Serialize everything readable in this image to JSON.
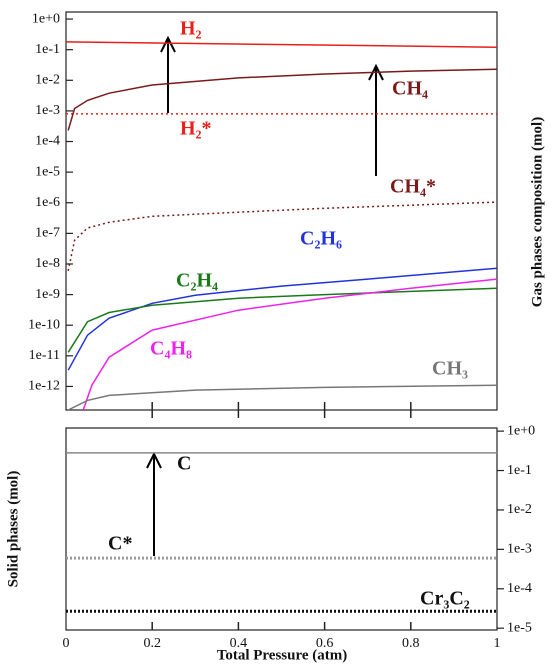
{
  "chart_data": [
    {
      "type": "line",
      "ylabel": "Gas phases composition (mol)",
      "ylog": true,
      "xlim": [
        0,
        1
      ],
      "ylim": [
        1.7e-13,
        1.7
      ],
      "yticks": [
        {
          "value": 1,
          "label": "1e+0"
        },
        {
          "value": 0.1,
          "label": "1e-1"
        },
        {
          "value": 0.01,
          "label": "1e-2"
        },
        {
          "value": 0.001,
          "label": "1e-3"
        },
        {
          "value": 0.0001,
          "label": "1e-4"
        },
        {
          "value": 1e-05,
          "label": "1e-5"
        },
        {
          "value": 1e-06,
          "label": "1e-6"
        },
        {
          "value": 1e-07,
          "label": "1e-7"
        },
        {
          "value": 1e-08,
          "label": "1e-8"
        },
        {
          "value": 1e-09,
          "label": "1e-9"
        },
        {
          "value": 1e-10,
          "label": "1e-10"
        },
        {
          "value": 1e-11,
          "label": "1e-11"
        },
        {
          "value": 1e-12,
          "label": "1e-12"
        }
      ],
      "series": [
        {
          "name": "H₂",
          "color": "#e8201a",
          "x": [
            0,
            1
          ],
          "values": [
            0.18,
            0.12
          ]
        },
        {
          "name": "H₂*",
          "color": "#e8201a",
          "dash": "dotted",
          "x": [
            0,
            1
          ],
          "values": [
            0.0008,
            0.0008
          ]
        },
        {
          "name": "CH₄",
          "color": "#7a1a1a",
          "x": [
            0.005,
            0.02,
            0.05,
            0.1,
            0.2,
            0.4,
            0.6,
            0.8,
            1
          ],
          "values": [
            0.00023,
            0.0012,
            0.0022,
            0.0038,
            0.007,
            0.012,
            0.016,
            0.02,
            0.023
          ]
        },
        {
          "name": "CH₄*",
          "color": "#7a1a1a",
          "dash": "dotted",
          "x": [
            0.005,
            0.02,
            0.05,
            0.1,
            0.2,
            0.4,
            0.6,
            0.8,
            1
          ],
          "values": [
            6e-09,
            6e-08,
            1.5e-07,
            2.3e-07,
            3.6e-07,
            4.9e-07,
            6.6e-07,
            8.3e-07,
            1.05e-06
          ]
        },
        {
          "name": "C₂H₆",
          "color": "#2233dd",
          "x": [
            0.005,
            0.05,
            0.1,
            0.2,
            0.3,
            0.5,
            0.7,
            1
          ],
          "values": [
            3.4e-12,
            4.7e-11,
            1.7e-10,
            5.2e-10,
            9.5e-10,
            1.9e-09,
            3.2e-09,
            7.3e-09
          ]
        },
        {
          "name": "C₂H₄",
          "color": "#1a7a1a",
          "x": [
            0.005,
            0.05,
            0.1,
            0.2,
            0.4,
            0.6,
            1
          ],
          "values": [
            1.3e-11,
            1.3e-10,
            2.6e-10,
            4.5e-10,
            7.6e-10,
            1e-09,
            1.6e-09
          ]
        },
        {
          "name": "C₄H₈",
          "color": "#ee22ee",
          "x": [
            0.04,
            0.06,
            0.1,
            0.2,
            0.4,
            0.6,
            0.8,
            1
          ],
          "values": [
            1.7e-13,
            1.1e-12,
            9e-12,
            6.9e-11,
            3.1e-10,
            7.6e-10,
            1.6e-09,
            3.2e-09
          ]
        },
        {
          "name": "CH₃",
          "color": "#777777",
          "x": [
            0.005,
            0.05,
            0.1,
            0.3,
            0.6,
            1
          ],
          "values": [
            1.7e-13,
            3.5e-13,
            5.1e-13,
            7.6e-13,
            9.3e-13,
            1.1e-12
          ]
        }
      ]
    },
    {
      "type": "line",
      "xlabel": "Total Pressure (atm)",
      "ylabel": "Solid phases (mol)",
      "ylog": true,
      "yaxis_side": "right",
      "xlim": [
        0,
        1
      ],
      "ylim": [
        9e-06,
        1.2
      ],
      "xticks": [
        0,
        0.2,
        0.4,
        0.6,
        0.8,
        1
      ],
      "yticks": [
        {
          "value": 1,
          "label": "1e+0"
        },
        {
          "value": 0.1,
          "label": "1e-1"
        },
        {
          "value": 0.01,
          "label": "1e-2"
        },
        {
          "value": 0.001,
          "label": "1e-3"
        },
        {
          "value": 0.0001,
          "label": "1e-4"
        },
        {
          "value": 1e-05,
          "label": "1e-5"
        }
      ],
      "series": [
        {
          "name": "C",
          "color": "#888888",
          "x": [
            0,
            1
          ],
          "values": [
            0.28,
            0.28
          ]
        },
        {
          "name": "C*",
          "color": "#999999",
          "dash": "dotted",
          "x": [
            0,
            1
          ],
          "values": [
            0.0006,
            0.0006
          ]
        },
        {
          "name": "Cr₃C₂",
          "color": "#111111",
          "dash": "dotted",
          "x": [
            0,
            1
          ],
          "values": [
            2.7e-05,
            2.7e-05
          ]
        }
      ]
    }
  ]
}
